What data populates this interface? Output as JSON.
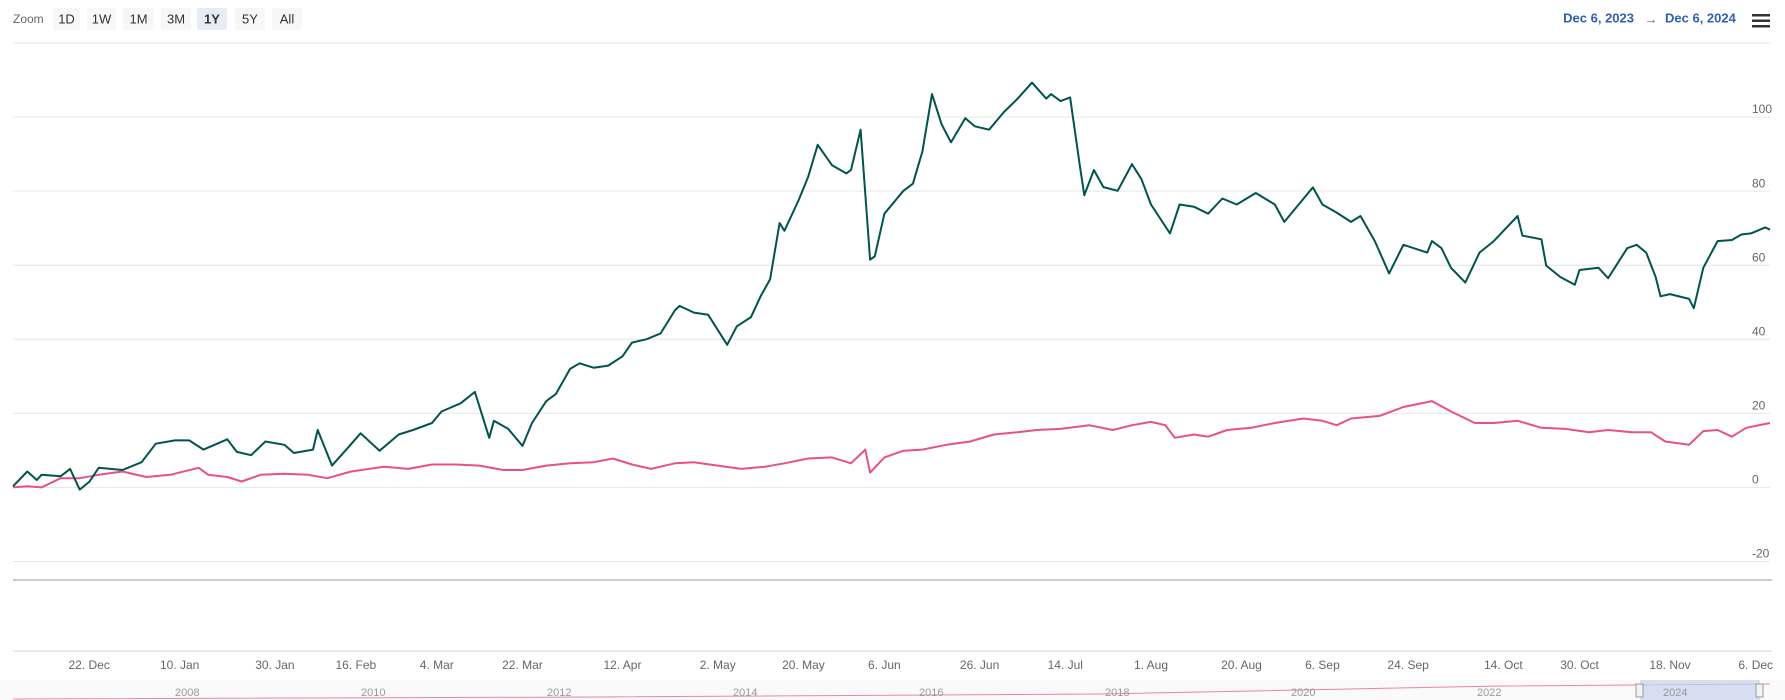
{
  "chart_data": {
    "type": "line",
    "zoom": {
      "label": "Zoom",
      "buttons": [
        "1D",
        "1W",
        "1M",
        "3M",
        "1Y",
        "5Y",
        "All"
      ],
      "selected": "1Y"
    },
    "range_from": "Dec 6, 2023",
    "range_separator": "→",
    "range_to": "Dec 6, 2024",
    "xlim": [
      "2023-12-06",
      "2024-12-09"
    ],
    "xticks": [
      {
        "value": "2023-12-22",
        "label": "22. Dec"
      },
      {
        "value": "2024-01-10",
        "label": "10. Jan"
      },
      {
        "value": "2024-01-30",
        "label": "30. Jan"
      },
      {
        "value": "2024-02-16",
        "label": "16. Feb"
      },
      {
        "value": "2024-03-04",
        "label": "4. Mar"
      },
      {
        "value": "2024-03-22",
        "label": "22. Mar"
      },
      {
        "value": "2024-04-12",
        "label": "12. Apr"
      },
      {
        "value": "2024-05-02",
        "label": "2. May"
      },
      {
        "value": "2024-05-20",
        "label": "20. May"
      },
      {
        "value": "2024-06-06",
        "label": "6. Jun"
      },
      {
        "value": "2024-06-26",
        "label": "26. Jun"
      },
      {
        "value": "2024-07-14",
        "label": "14. Jul"
      },
      {
        "value": "2024-08-01",
        "label": "1. Aug"
      },
      {
        "value": "2024-08-20",
        "label": "20. Aug"
      },
      {
        "value": "2024-09-06",
        "label": "6. Sep"
      },
      {
        "value": "2024-09-24",
        "label": "24. Sep"
      },
      {
        "value": "2024-10-14",
        "label": "14. Oct"
      },
      {
        "value": "2024-10-30",
        "label": "30. Oct"
      },
      {
        "value": "2024-11-18",
        "label": "18. Nov"
      },
      {
        "value": "2024-12-06",
        "label": "6. Dec"
      }
    ],
    "ylim": [
      -25,
      120
    ],
    "yticks": [
      -20,
      0,
      20,
      40,
      60,
      80,
      100
    ],
    "grid": true,
    "series": [
      {
        "color": "#00534e",
        "x": [
          "2023-12-06",
          "2023-12-09",
          "2023-12-11",
          "2023-12-12",
          "2023-12-16",
          "2023-12-18",
          "2023-12-20",
          "2023-12-22",
          "2023-12-24",
          "2023-12-29",
          "2024-01-02",
          "2024-01-05",
          "2024-01-09",
          "2024-01-12",
          "2024-01-15",
          "2024-01-20",
          "2024-01-22",
          "2024-01-25",
          "2024-01-28",
          "2024-02-01",
          "2024-02-03",
          "2024-02-07",
          "2024-02-08",
          "2024-02-11",
          "2024-02-14",
          "2024-02-17",
          "2024-02-21",
          "2024-02-25",
          "2024-02-28",
          "2024-03-03",
          "2024-03-05",
          "2024-03-09",
          "2024-03-12",
          "2024-03-15",
          "2024-03-16",
          "2024-03-19",
          "2024-03-22",
          "2024-03-24",
          "2024-03-27",
          "2024-03-29",
          "2024-04-01",
          "2024-04-03",
          "2024-04-06",
          "2024-04-09",
          "2024-04-12",
          "2024-04-14",
          "2024-04-17",
          "2024-04-20",
          "2024-04-23",
          "2024-04-24",
          "2024-04-27",
          "2024-04-30",
          "2024-05-04",
          "2024-05-06",
          "2024-05-09",
          "2024-05-11",
          "2024-05-13",
          "2024-05-15",
          "2024-05-16",
          "2024-05-19",
          "2024-05-21",
          "2024-05-23",
          "2024-05-26",
          "2024-05-29",
          "2024-05-30",
          "2024-06-01",
          "2024-06-03",
          "2024-06-04",
          "2024-06-06",
          "2024-06-10",
          "2024-06-12",
          "2024-06-14",
          "2024-06-16",
          "2024-06-18",
          "2024-06-20",
          "2024-06-23",
          "2024-06-25",
          "2024-06-28",
          "2024-07-01",
          "2024-07-04",
          "2024-07-07",
          "2024-07-10",
          "2024-07-11",
          "2024-07-13",
          "2024-07-15",
          "2024-07-17",
          "2024-07-18",
          "2024-07-20",
          "2024-07-22",
          "2024-07-25",
          "2024-07-28",
          "2024-07-30",
          "2024-08-01",
          "2024-08-05",
          "2024-08-07",
          "2024-08-10",
          "2024-08-13",
          "2024-08-16",
          "2024-08-19",
          "2024-08-23",
          "2024-08-27",
          "2024-08-29",
          "2024-08-31",
          "2024-09-04",
          "2024-09-06",
          "2024-09-09",
          "2024-09-12",
          "2024-09-14",
          "2024-09-17",
          "2024-09-20",
          "2024-09-23",
          "2024-09-28",
          "2024-09-29",
          "2024-10-01",
          "2024-10-03",
          "2024-10-06",
          "2024-10-09",
          "2024-10-12",
          "2024-10-17",
          "2024-10-18",
          "2024-10-22",
          "2024-10-23",
          "2024-10-26",
          "2024-10-29",
          "2024-10-30",
          "2024-11-03",
          "2024-11-05",
          "2024-11-09",
          "2024-11-11",
          "2024-11-13",
          "2024-11-15",
          "2024-11-16",
          "2024-11-18",
          "2024-11-22",
          "2024-11-23",
          "2024-11-25",
          "2024-11-28",
          "2024-12-01",
          "2024-12-03",
          "2024-12-05",
          "2024-12-08",
          "2024-12-09"
        ],
        "values": [
          0.3,
          4.3,
          2,
          3.4,
          3,
          5,
          -0.6,
          1.5,
          5.3,
          4.7,
          6.8,
          11.8,
          12.7,
          12.7,
          10.2,
          13,
          9.6,
          8.7,
          12.4,
          11.5,
          9.3,
          10.2,
          15.5,
          5.9,
          10.2,
          14.6,
          9.9,
          14.3,
          15.5,
          17.4,
          20.5,
          22.7,
          25.8,
          13.4,
          18,
          15.8,
          11.2,
          17.4,
          23.3,
          25.2,
          32,
          33.5,
          32.3,
          32.9,
          35.4,
          39.1,
          40,
          41.6,
          47.8,
          49,
          47.2,
          46.6,
          38.5,
          43.5,
          46,
          51.6,
          56.2,
          71.4,
          69.3,
          77.6,
          83.9,
          92.5,
          87,
          84.8,
          85.7,
          96.6,
          61.5,
          62.4,
          73.9,
          80.1,
          82,
          90.7,
          106.2,
          98.1,
          93.2,
          99.7,
          97.5,
          96.6,
          101.2,
          105,
          109.3,
          105,
          106.2,
          104.3,
          105.3,
          87.3,
          78.9,
          85.7,
          81.1,
          80.1,
          87.3,
          83.2,
          76.4,
          68.6,
          76.4,
          75.8,
          73.9,
          78,
          76.4,
          79.5,
          76.4,
          71.7,
          74.8,
          81,
          76.4,
          74.2,
          71.7,
          73.3,
          66.5,
          57.8,
          65.5,
          63.4,
          66.5,
          64.6,
          59.3,
          55.3,
          63.4,
          66.5,
          73.3,
          68,
          67,
          59.9,
          56.8,
          54.7,
          58.7,
          59.3,
          56.5,
          64.6,
          65.5,
          63.4,
          56.8,
          51.6,
          52.2,
          50.9,
          48.4,
          59.3,
          66.5,
          66.8,
          68.3,
          68.6,
          70.2,
          69.6
        ]
      },
      {
        "color": "#e8508a",
        "x": [
          "2023-12-06",
          "2023-12-09",
          "2023-12-12",
          "2023-12-16",
          "2023-12-20",
          "2023-12-24",
          "2023-12-29",
          "2024-01-03",
          "2024-01-08",
          "2024-01-14",
          "2024-01-16",
          "2024-01-20",
          "2024-01-23",
          "2024-01-27",
          "2024-02-01",
          "2024-02-06",
          "2024-02-10",
          "2024-02-15",
          "2024-02-22",
          "2024-02-27",
          "2024-03-03",
          "2024-03-08",
          "2024-03-13",
          "2024-03-18",
          "2024-03-22",
          "2024-03-27",
          "2024-04-01",
          "2024-04-06",
          "2024-04-10",
          "2024-04-14",
          "2024-04-18",
          "2024-04-23",
          "2024-04-27",
          "2024-05-02",
          "2024-05-07",
          "2024-05-12",
          "2024-05-16",
          "2024-05-21",
          "2024-05-26",
          "2024-05-30",
          "2024-06-02",
          "2024-06-03",
          "2024-06-06",
          "2024-06-10",
          "2024-06-14",
          "2024-06-19",
          "2024-06-24",
          "2024-06-29",
          "2024-07-04",
          "2024-07-08",
          "2024-07-13",
          "2024-07-19",
          "2024-07-24",
          "2024-07-28",
          "2024-08-01",
          "2024-08-04",
          "2024-08-06",
          "2024-08-10",
          "2024-08-13",
          "2024-08-17",
          "2024-08-22",
          "2024-08-27",
          "2024-09-02",
          "2024-09-06",
          "2024-09-09",
          "2024-09-12",
          "2024-09-18",
          "2024-09-23",
          "2024-09-29",
          "2024-10-03",
          "2024-10-08",
          "2024-10-12",
          "2024-10-17",
          "2024-10-22",
          "2024-10-27",
          "2024-11-01",
          "2024-11-05",
          "2024-11-10",
          "2024-11-14",
          "2024-11-17",
          "2024-11-22",
          "2024-11-25",
          "2024-11-28",
          "2024-12-01",
          "2024-12-04",
          "2024-12-09"
        ],
        "values": [
          0,
          0.3,
          0,
          2.5,
          2.5,
          3.4,
          4.3,
          2.8,
          3.4,
          5.3,
          3.4,
          2.8,
          1.6,
          3.4,
          3.7,
          3.4,
          2.5,
          4.3,
          5.6,
          5,
          6.2,
          6.2,
          5.9,
          4.7,
          4.7,
          5.9,
          6.5,
          6.8,
          7.8,
          6.2,
          5,
          6.5,
          6.8,
          5.9,
          5,
          5.6,
          6.5,
          7.8,
          8.1,
          6.5,
          10.2,
          4,
          8.1,
          9.9,
          10.2,
          11.5,
          12.4,
          14.3,
          14.9,
          15.5,
          15.8,
          16.8,
          15.5,
          16.8,
          17.7,
          16.8,
          13.4,
          14.3,
          13.7,
          15.5,
          16.1,
          17.4,
          18.6,
          18,
          16.8,
          18.6,
          19.3,
          21.7,
          23.3,
          20.5,
          17.4,
          17.4,
          18,
          16.1,
          15.8,
          14.9,
          15.5,
          14.9,
          14.9,
          12.4,
          11.5,
          15.2,
          15.5,
          13.7,
          16.1,
          17.4
        ]
      }
    ],
    "navigator": {
      "labels": [
        "2008",
        "2010",
        "2012",
        "2014",
        "2016",
        "2018",
        "2020",
        "2022",
        "2024"
      ]
    }
  }
}
